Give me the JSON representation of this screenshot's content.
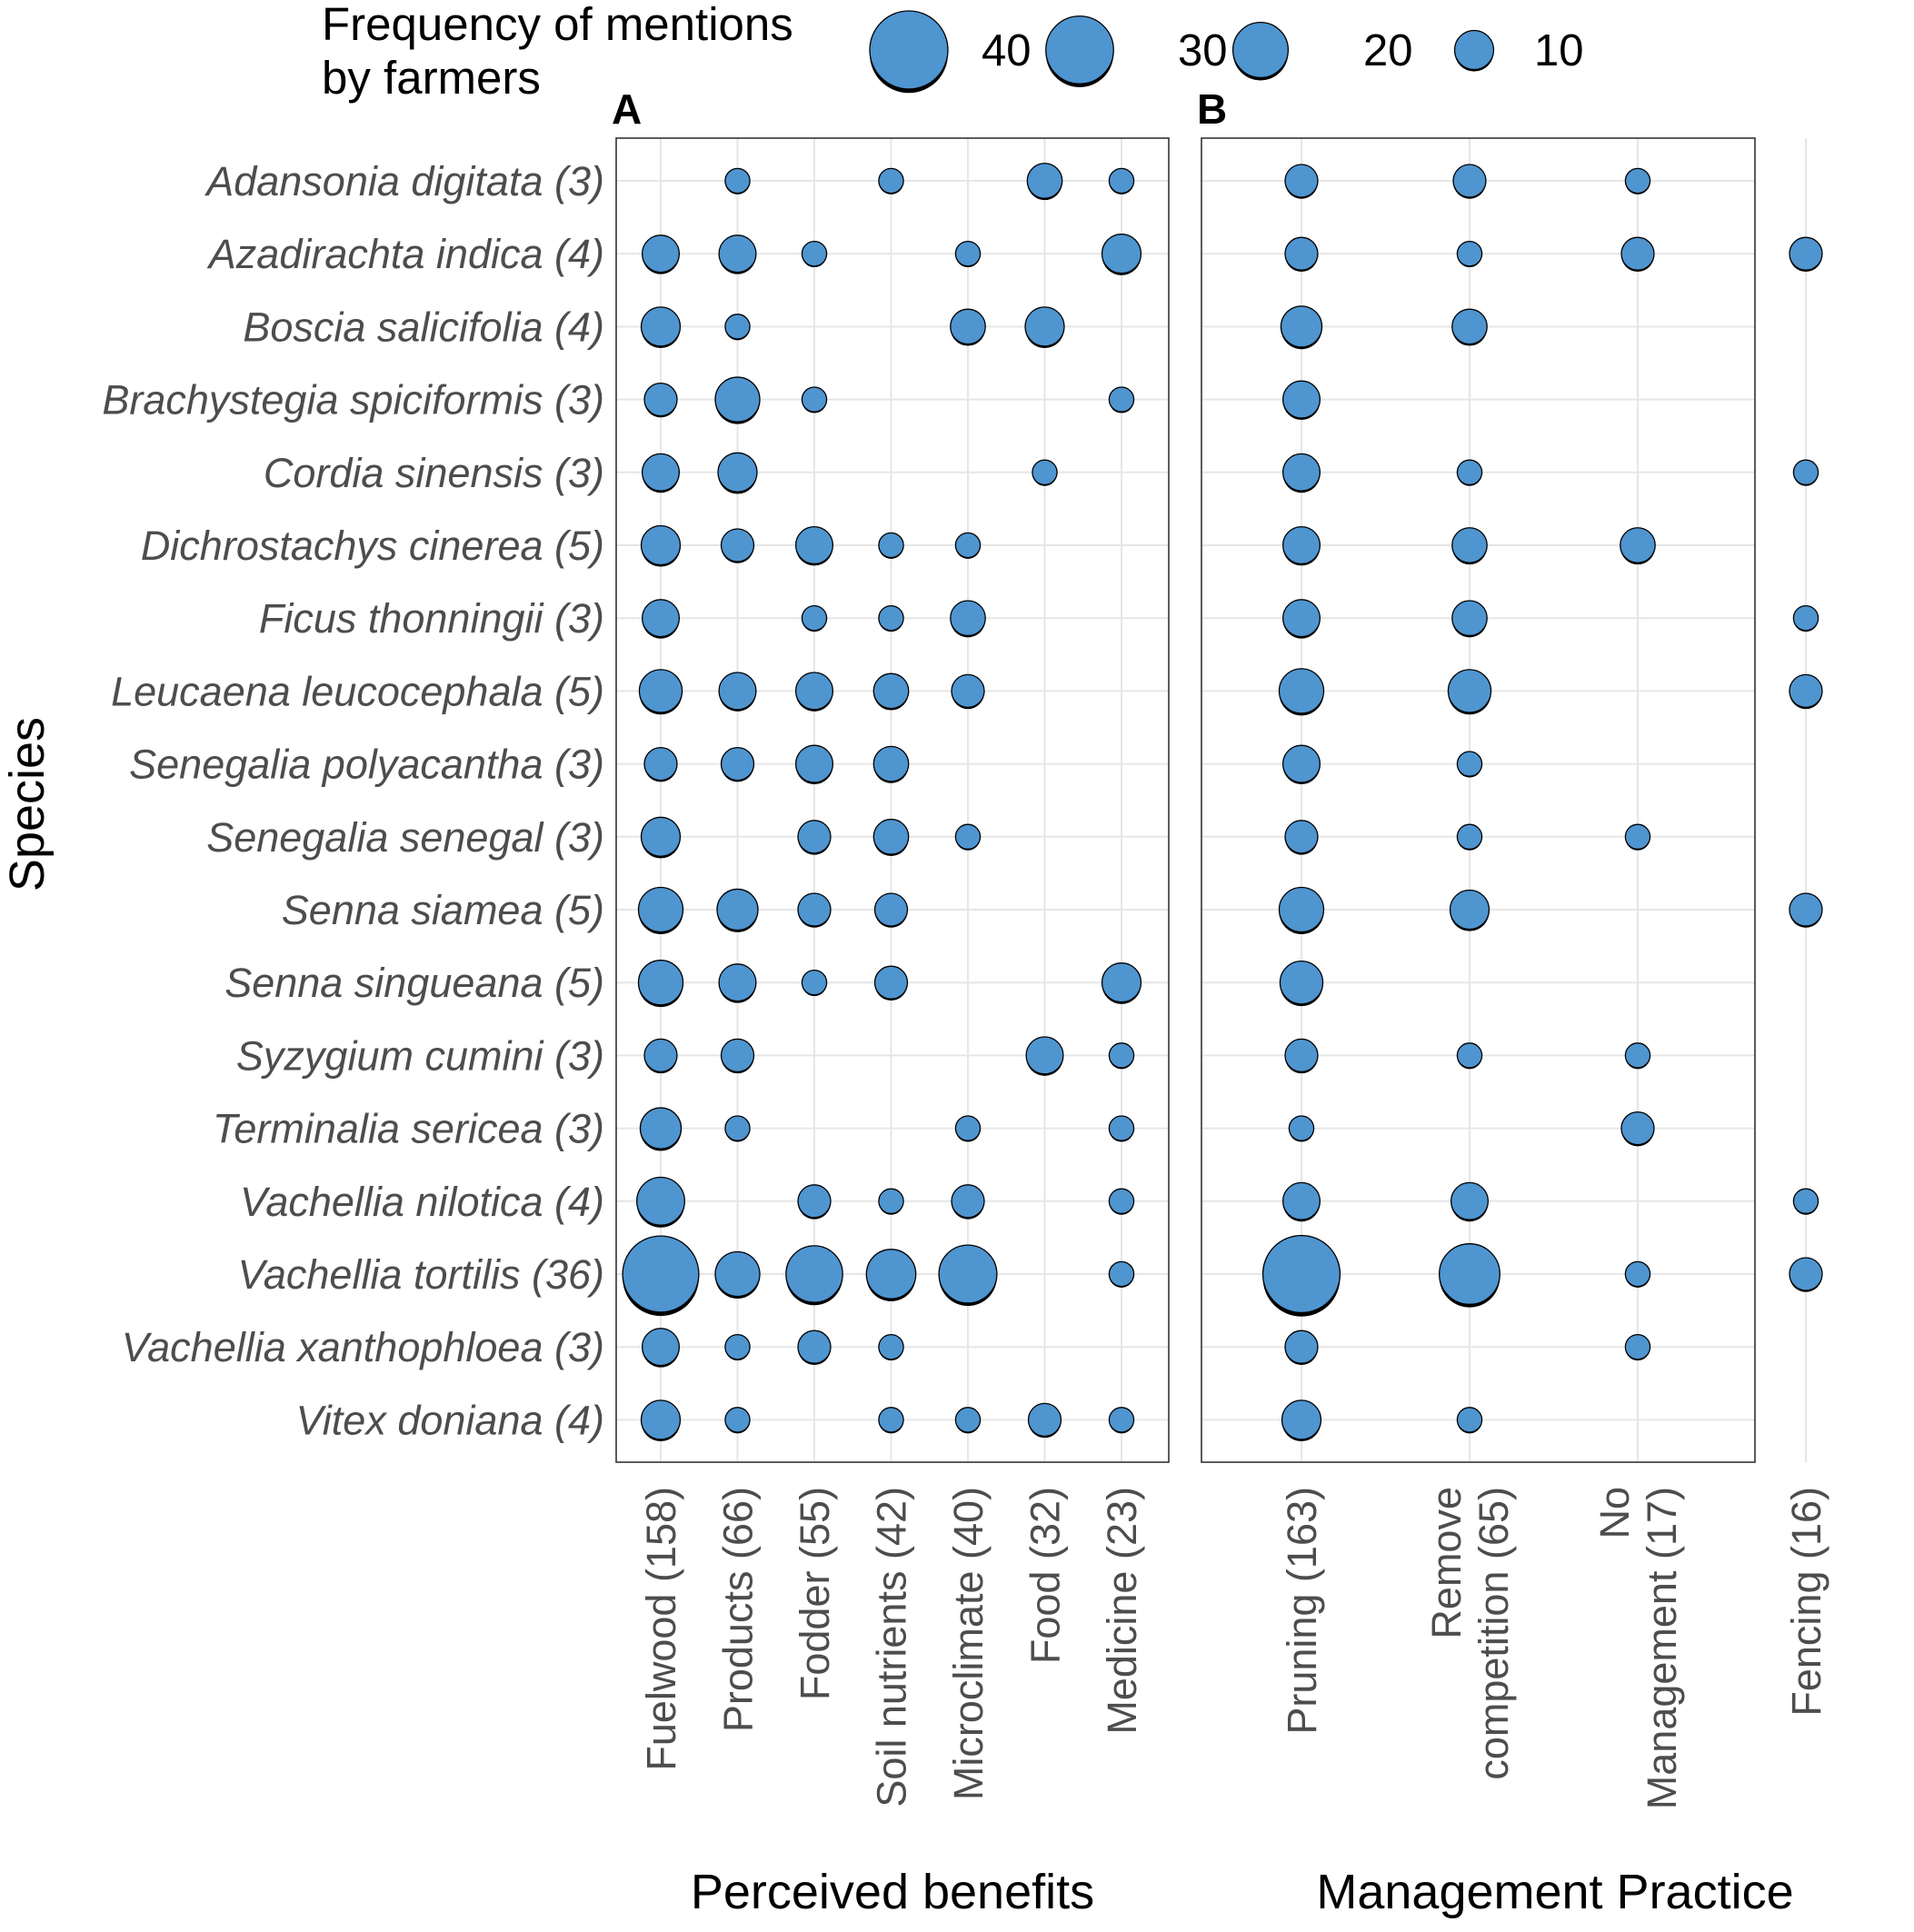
{
  "colors": {
    "bubble": "#4f95d0",
    "bubble_shadow": "#000000",
    "grid": "#e6e6e6",
    "text": "#4d4d4d"
  },
  "legend": {
    "title_line1": "Frequency of mentions",
    "title_line2": "by farmers",
    "entries": [
      {
        "value": 40,
        "label": "40"
      },
      {
        "value": 30,
        "label": "30"
      },
      {
        "value": 20,
        "label": "20"
      },
      {
        "value": 10,
        "label": "10"
      }
    ]
  },
  "y_axis_title": "Species",
  "species": [
    "Adansonia digitata (3)",
    "Azadirachta indica (4)",
    "Boscia salicifolia (4)",
    "Brachystegia spiciformis (3)",
    "Cordia sinensis (3)",
    "Dichrostachys cinerea (5)",
    "Ficus thonningii (3)",
    "Leucaena leucocephala (5)",
    "Senegalia polyacantha (3)",
    "Senegalia senegal (3)",
    "Senna siamea (5)",
    "Senna singueana (5)",
    "Syzygium cumini (3)",
    "Terminalia sericea (3)",
    "Vachellia nilotica (4)",
    "Vachellia tortilis (36)",
    "Vachellia xanthophloea (3)",
    "Vitex doniana (4)"
  ],
  "chart_data": [
    {
      "type": "scatter",
      "subtype": "bubble",
      "panel": "A",
      "title": "A",
      "xlabel": "Perceived benefits",
      "ylabel": "Species",
      "categories": [
        "Fuelwood (158)",
        "Products (66)",
        "Fodder (55)",
        "Soil nutrients (42)",
        "Microclimate (40)",
        "Food (32)",
        "Medicine (23)"
      ],
      "size_legend": [
        40,
        30,
        20,
        10
      ],
      "values": [
        [
          null,
          4,
          null,
          4,
          null,
          8,
          4
        ],
        [
          9,
          9,
          4,
          null,
          4,
          null,
          10
        ],
        [
          10,
          4,
          null,
          null,
          8,
          10,
          null
        ],
        [
          7,
          13,
          4,
          null,
          null,
          null,
          4
        ],
        [
          9,
          10,
          null,
          null,
          null,
          4,
          null
        ],
        [
          10,
          7,
          9,
          4,
          4,
          null,
          null
        ],
        [
          9,
          null,
          4,
          4,
          8,
          null,
          null
        ],
        [
          12,
          9,
          9,
          8,
          7,
          null,
          null
        ],
        [
          7,
          7,
          9,
          8,
          null,
          null,
          null
        ],
        [
          10,
          null,
          7,
          8,
          4,
          null,
          null
        ],
        [
          13,
          11,
          7,
          7,
          null,
          null,
          null
        ],
        [
          13,
          9,
          4,
          7,
          null,
          null,
          10
        ],
        [
          7,
          7,
          null,
          null,
          null,
          9,
          4
        ],
        [
          11,
          4,
          null,
          null,
          4,
          null,
          4
        ],
        [
          15,
          null,
          7,
          4,
          7,
          null,
          4
        ],
        [
          38,
          13,
          21,
          16,
          22,
          null,
          4
        ],
        [
          9,
          4,
          7,
          4,
          null,
          null,
          null
        ],
        [
          10,
          4,
          null,
          4,
          4,
          7,
          4
        ]
      ]
    },
    {
      "type": "scatter",
      "subtype": "bubble",
      "panel": "B",
      "title": "B",
      "xlabel": "Management Practice",
      "ylabel": "Species",
      "categories": [
        "Pruning (163)",
        "Remove competition (65)",
        "No Management (17)",
        "Fencing (16)"
      ],
      "category_lines": [
        [
          "Pruning (163)"
        ],
        [
          "Remove",
          "competition (65)"
        ],
        [
          "No",
          "Management (17)"
        ],
        [
          "Fencing (16)"
        ]
      ],
      "size_legend": [
        40,
        30,
        20,
        10
      ],
      "values": [
        [
          7,
          7,
          4,
          null
        ],
        [
          7,
          4,
          7,
          7
        ],
        [
          11,
          8,
          null,
          null
        ],
        [
          9,
          null,
          null,
          null
        ],
        [
          9,
          4,
          null,
          4
        ],
        [
          9,
          8,
          8,
          null
        ],
        [
          9,
          8,
          null,
          4
        ],
        [
          13,
          12,
          null,
          7
        ],
        [
          9,
          4,
          null,
          null
        ],
        [
          7,
          4,
          4,
          null
        ],
        [
          13,
          10,
          null,
          7
        ],
        [
          12,
          null,
          null,
          null
        ],
        [
          7,
          4,
          4,
          null
        ],
        [
          4,
          null,
          7,
          null
        ],
        [
          9,
          9,
          null,
          4
        ],
        [
          39,
          24,
          4,
          7
        ],
        [
          7,
          null,
          4,
          null
        ],
        [
          10,
          4,
          null,
          null
        ]
      ]
    }
  ]
}
